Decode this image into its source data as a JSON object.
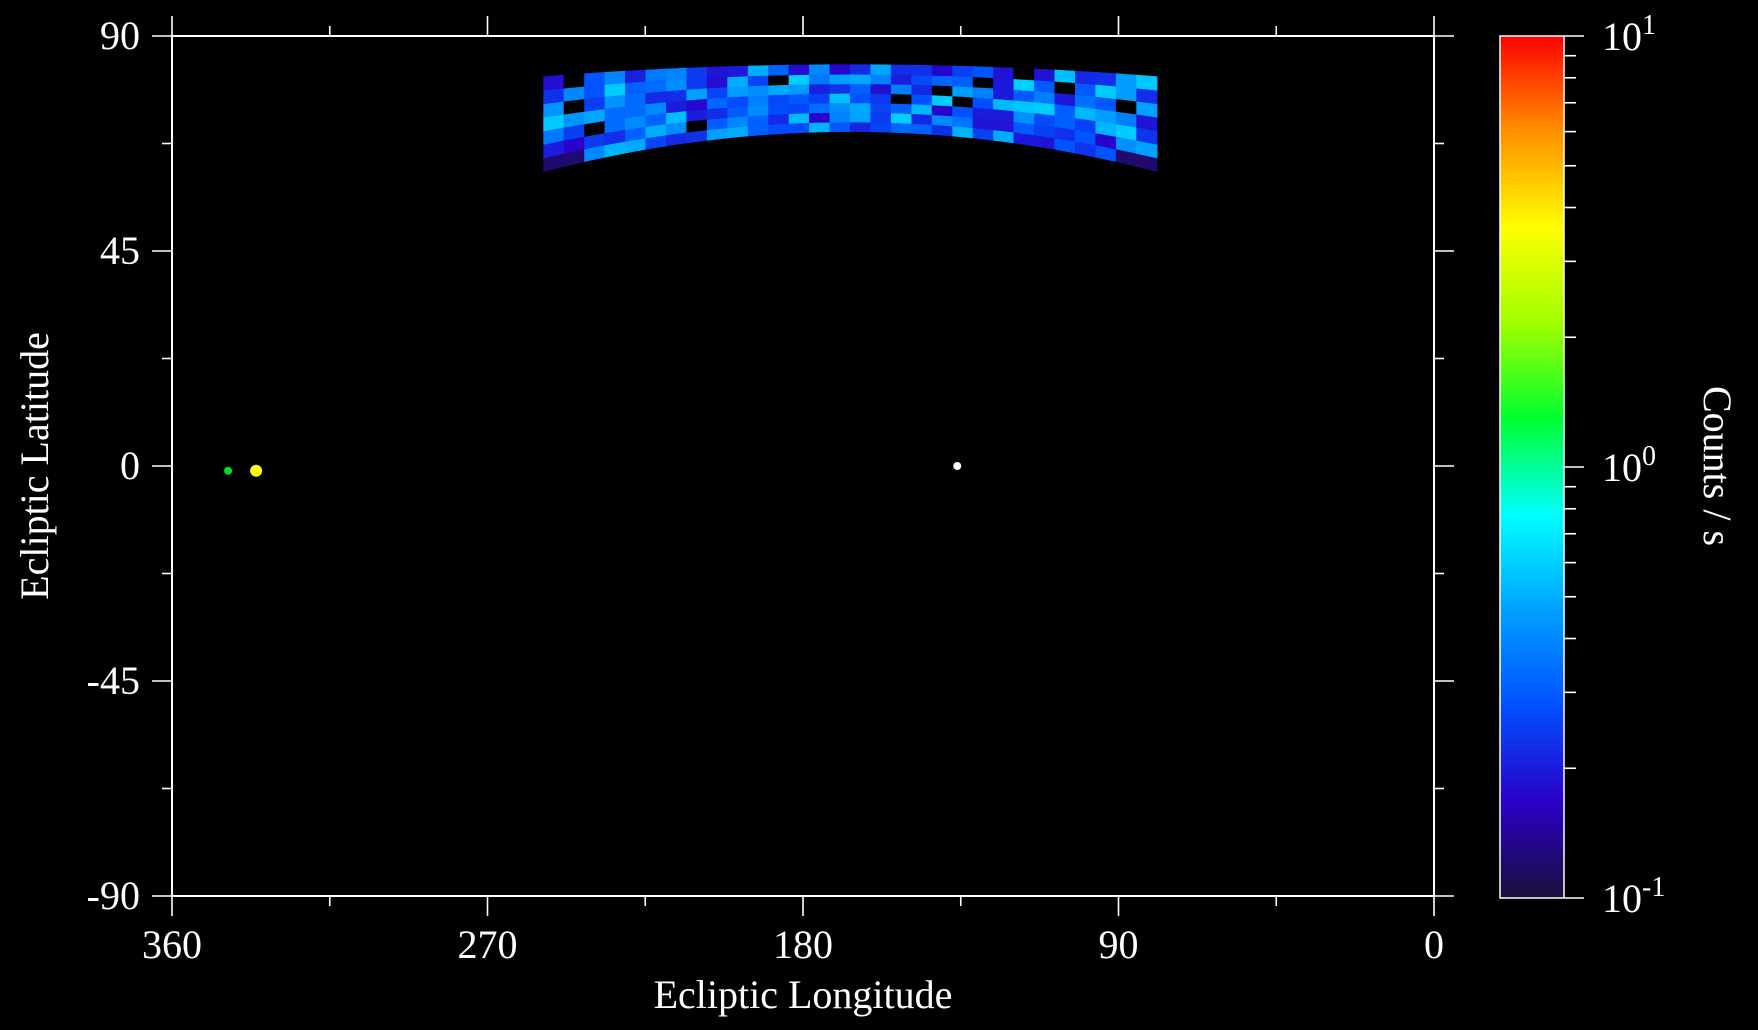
{
  "chart_data": {
    "type": "heatmap",
    "xlabel": "Ecliptic Longitude",
    "ylabel": "Ecliptic Latitude",
    "colorbar_label": "Counts / s",
    "xlim": [
      360,
      0
    ],
    "ylim": [
      -90,
      90
    ],
    "x_ticks": [
      360,
      270,
      180,
      90,
      0
    ],
    "x_minor_ticks": [
      315,
      225,
      135,
      45
    ],
    "y_ticks": [
      90,
      45,
      0,
      -45,
      -90
    ],
    "y_minor_ticks": [
      67.5,
      22.5,
      -22.5,
      -67.5
    ],
    "colorbar": {
      "scale": "log",
      "min": 0.1,
      "max": 10,
      "ticks": [
        {
          "value": 0.1,
          "base": "10",
          "exp": "-1"
        },
        {
          "value": 1,
          "base": "10",
          "exp": "0"
        },
        {
          "value": 10,
          "base": "10",
          "exp": "1"
        }
      ],
      "colors": [
        "#1a0f3a",
        "#2a00c8",
        "#0050ff",
        "#00a0ff",
        "#00ffff",
        "#00ff30",
        "#a0ff00",
        "#ffff00",
        "#ff9000",
        "#ff0000"
      ]
    },
    "map_region": {
      "lon_range": [
        254,
        79
      ],
      "lat_range": [
        70,
        84
      ],
      "lon_bins": 30,
      "lat_bins": 7,
      "typical_counts_per_s": 0.3
    },
    "point_sources": [
      {
        "lon": 344,
        "lat": -1,
        "counts_per_s": 1.0,
        "color": "#00dd22"
      },
      {
        "lon": 336,
        "lat": -1,
        "counts_per_s": 3.5,
        "color": "#ffff00"
      },
      {
        "lon": 136,
        "lat": 0,
        "counts_per_s": null,
        "color": "#ffffff"
      }
    ],
    "grid": false,
    "legend": "none"
  }
}
